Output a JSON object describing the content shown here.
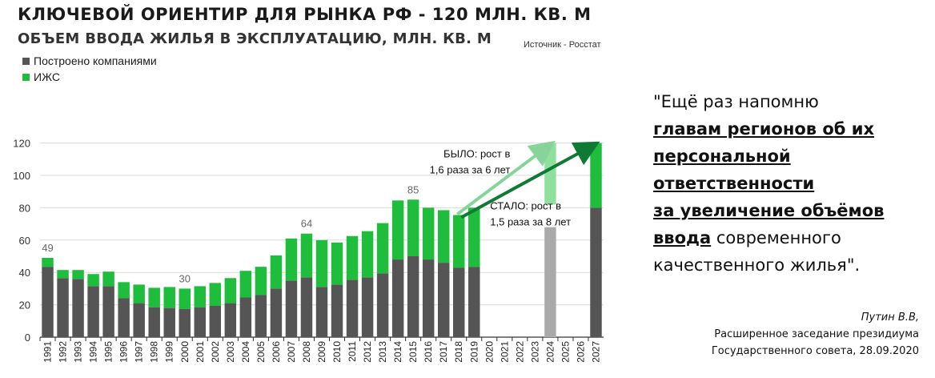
{
  "header": {
    "title": "КЛЮЧЕВОЙ ОРИЕНТИР ДЛЯ РЫНКА РФ - 120 МЛН. КВ. М",
    "subtitle": "ОБЪЕМ ВВОДА  ЖИЛЬЯ В ЭКСПЛУАТАЦИЮ, МЛН. КВ. М",
    "source": "Источник - Росстат"
  },
  "colors": {
    "companies": "#555555",
    "izhs": "#1fbd3c",
    "plan_light": "#8fe09f",
    "plan_grey": "#aaaaaa",
    "arrow_light": "#86d49a",
    "arrow_dark": "#0e7a34"
  },
  "chart_data": {
    "type": "bar",
    "stacked": true,
    "title": "ОБЪЕМ ВВОДА  ЖИЛЬЯ В ЭКСПЛУАТАЦИЮ, МЛН. КВ. М",
    "ylim": [
      0,
      125
    ],
    "yticks": [
      0,
      20,
      40,
      60,
      80,
      100,
      120
    ],
    "categories": [
      "1991",
      "1992",
      "1993",
      "1994",
      "1995",
      "1996",
      "1997",
      "1998",
      "1999",
      "2000",
      "2001",
      "2002",
      "2003",
      "2004",
      "2005",
      "2006",
      "2007",
      "2008",
      "2009",
      "2010",
      "2011",
      "2012",
      "2013",
      "2014",
      "2015",
      "2016",
      "2017",
      "2018",
      "2019",
      "2020",
      "2021",
      "2022",
      "2023",
      "2024",
      "2025",
      "2026",
      "2027"
    ],
    "series": [
      {
        "name": "Построено компаниями",
        "values": [
          43.5,
          36.5,
          36,
          31.5,
          31.5,
          24,
          21,
          18.5,
          18,
          17.5,
          18.5,
          19.5,
          21,
          24.5,
          26,
          30,
          35,
          37,
          31,
          32.5,
          35.5,
          37,
          39.5,
          48,
          50,
          48,
          46,
          43,
          43.5,
          null,
          null,
          null,
          null,
          null,
          null,
          null,
          80
        ]
      },
      {
        "name": "ИЖС",
        "values": [
          5.5,
          5,
          5.5,
          7.5,
          9,
          10,
          11.5,
          12,
          13,
          12.5,
          13,
          14,
          15.5,
          16.5,
          17.5,
          20.5,
          26,
          27,
          29,
          26,
          27,
          28.5,
          31,
          36.5,
          35,
          32,
          32.5,
          32.5,
          36.5,
          null,
          null,
          null,
          null,
          null,
          null,
          null,
          40
        ]
      }
    ],
    "plan_2024": {
      "bar_base": 68,
      "bar_top": 82,
      "target": 120
    },
    "data_labels": [
      {
        "category": "1991",
        "text": "49"
      },
      {
        "category": "2000",
        "text": "30"
      },
      {
        "category": "2008",
        "text": "64"
      },
      {
        "category": "2015",
        "text": "85"
      }
    ],
    "annotations": {
      "bylo": [
        "БЫЛО: рост в",
        "1,6 раза за 6 лет"
      ],
      "stalo": [
        "СТАЛО: рост в",
        "1,5 раза за 8 лет"
      ]
    },
    "legend": [
      {
        "name": "Построено компаниями",
        "color": "#555555"
      },
      {
        "name": "ИЖС",
        "color": "#1fbd3c"
      }
    ]
  },
  "quote": {
    "open": "\"Ещё раз напомню",
    "line2": "главам регионов об их",
    "line3": "персональной",
    "line4": "ответственности",
    "line5": "за увеличение объёмов",
    "line6_bold": "ввода",
    "line6_rest": " современного",
    "line7": "качественного жилья\"."
  },
  "attribution": {
    "author": "Путин В.В,",
    "line2": "Расширенное заседание президиума",
    "line3": "Государственного совета, 28.09.2020"
  }
}
